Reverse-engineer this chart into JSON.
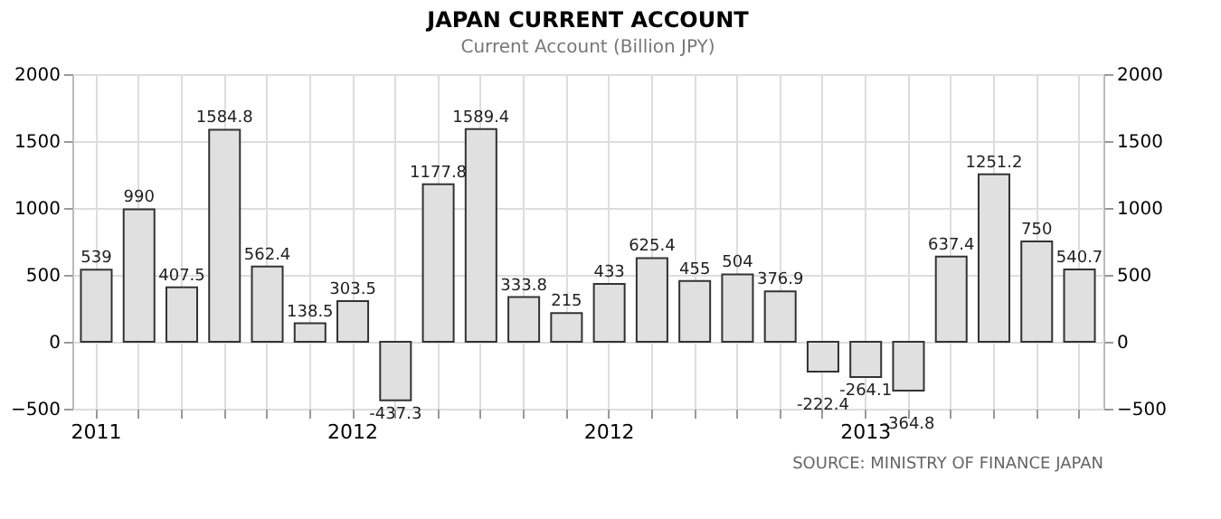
{
  "chart_data": {
    "type": "bar",
    "title": "JAPAN CURRENT ACCOUNT",
    "subtitle": "Current Account (Billion JPY)",
    "categories": [
      "2011",
      null,
      null,
      null,
      null,
      null,
      "2012",
      null,
      null,
      null,
      null,
      null,
      "2012",
      null,
      null,
      null,
      null,
      null,
      "2013",
      null,
      null,
      null,
      null,
      null
    ],
    "values": [
      539,
      990,
      407.5,
      1584.8,
      562.4,
      138.5,
      303.5,
      -437.3,
      1177.8,
      1589.4,
      333.8,
      215,
      433,
      625.4,
      455,
      504,
      376.9,
      -222.4,
      -264.1,
      -364.8,
      637.4,
      1251.2,
      750,
      540.7
    ],
    "color": "#e0e0e0",
    "data_labels": true,
    "ylim": [
      -500,
      2000
    ],
    "yticks": [
      -500,
      0,
      500,
      1000,
      1500,
      2000
    ],
    "y2lim": [
      -500,
      2000
    ],
    "y2ticks": [
      -500,
      0,
      500,
      1000,
      1500,
      2000
    ],
    "grid": true,
    "annotations": [
      "SOURCE: MINISTRY OF FINANCE JAPAN"
    ]
  }
}
